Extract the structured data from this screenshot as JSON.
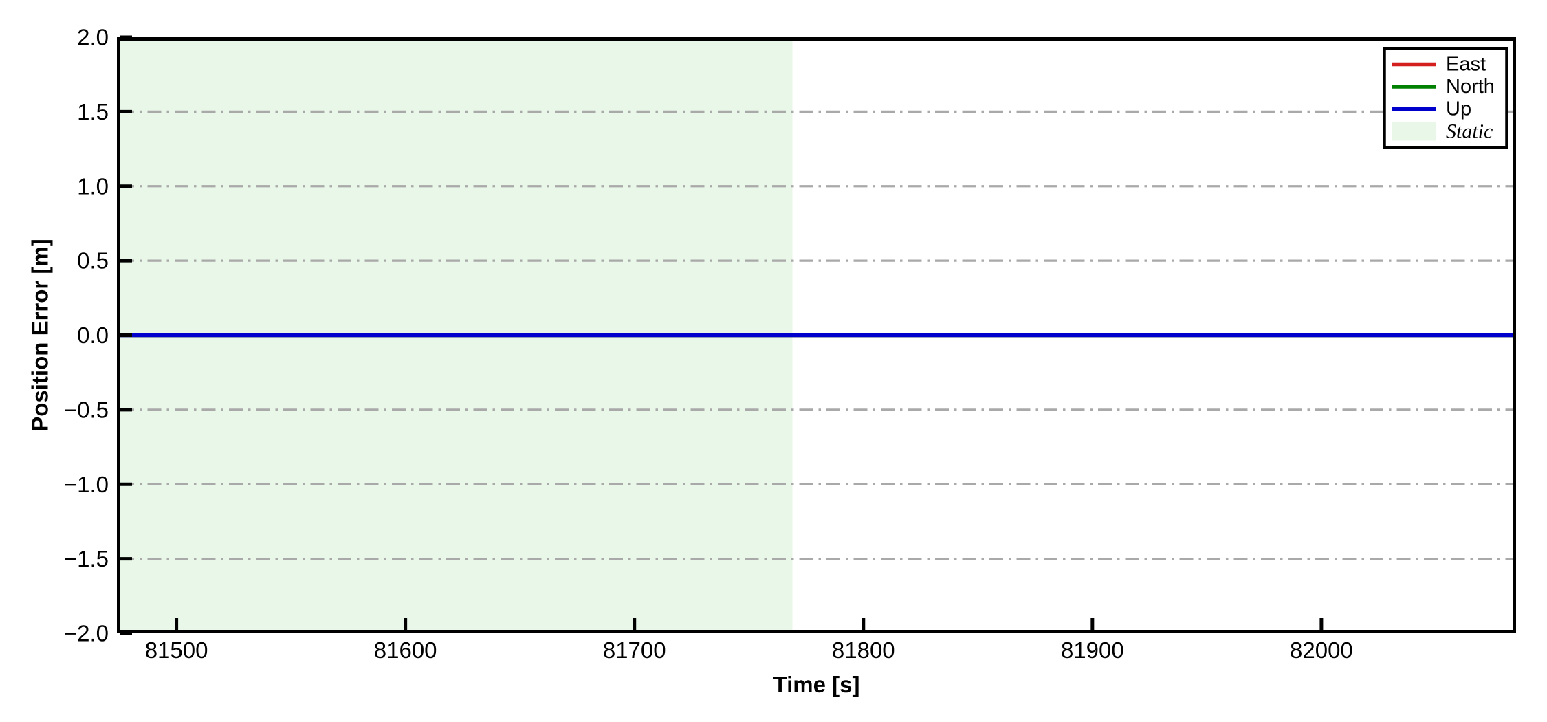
{
  "figure": {
    "background": "#ffffff"
  },
  "chart_data": {
    "type": "line",
    "title": "",
    "xlabel": "Time [s]",
    "ylabel": "Position Error [m]",
    "xlim": [
      81474,
      82085
    ],
    "ylim": [
      -2.0,
      2.0
    ],
    "x_ticks": [
      81500,
      81600,
      81700,
      81800,
      81900,
      82000
    ],
    "x_tick_labels": [
      "81500",
      "81600",
      "81700",
      "81800",
      "81900",
      "82000"
    ],
    "y_ticks": [
      2.0,
      1.5,
      1.0,
      0.5,
      0.0,
      -0.5,
      -1.0,
      -1.5,
      -2.0
    ],
    "y_tick_labels": [
      "2.0",
      "1.5",
      "1.0",
      "0.5",
      "0.0",
      "−0.5",
      "−1.0",
      "−1.5",
      "−2.0"
    ],
    "grid": {
      "on": true,
      "axis": "y",
      "style": "dash-dot",
      "color": "#a9a9a9"
    },
    "axis_color": "#000000",
    "series": [
      {
        "name": "East",
        "color": "#d41f1f",
        "x": [
          81474,
          82085
        ],
        "values": [
          0.0,
          0.0
        ]
      },
      {
        "name": "North",
        "color": "#008000",
        "x": [
          81474,
          82085
        ],
        "values": [
          0.0,
          0.0
        ]
      },
      {
        "name": "Up",
        "color": "#0000cd",
        "x": [
          81474,
          82085
        ],
        "values": [
          0.0,
          0.0
        ]
      }
    ],
    "regions": [
      {
        "label": "Static",
        "span": [
          81474,
          81769
        ],
        "color": "#e8f7e7"
      }
    ],
    "legend": {
      "position": "upper right",
      "entries": [
        {
          "label": "East",
          "type": "line",
          "color": "#d41f1f"
        },
        {
          "label": "North",
          "type": "line",
          "color": "#008000"
        },
        {
          "label": "Up",
          "type": "line",
          "color": "#0000cd"
        },
        {
          "label": "Static",
          "type": "patch",
          "color": "#e8f7e7"
        }
      ]
    }
  }
}
